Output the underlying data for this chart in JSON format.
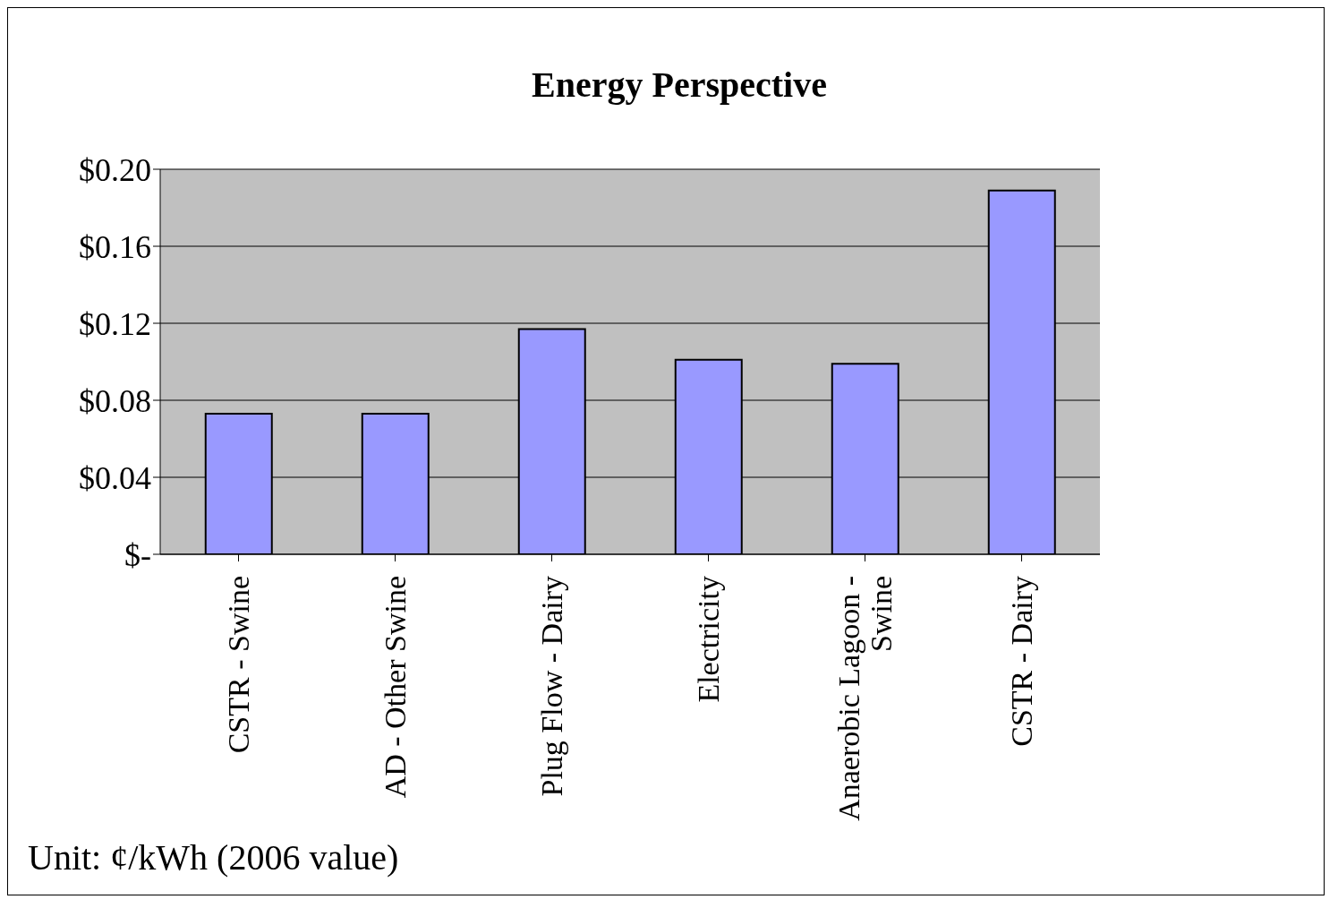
{
  "chart_data": {
    "type": "bar",
    "title": "Energy Perspective",
    "categories": [
      "CSTR - Swine",
      "AD - Other Swine",
      "Plug Flow - Dairy",
      "Electricity",
      "Anaerobic Lagoon - Swine",
      "CSTR - Dairy"
    ],
    "values": [
      0.073,
      0.073,
      0.117,
      0.101,
      0.099,
      0.189
    ],
    "color": "#9999ff",
    "ylim": [
      0,
      0.2
    ],
    "yticks": [
      {
        "value": 0,
        "label": "$-"
      },
      {
        "value": 0.04,
        "label": "$0.04"
      },
      {
        "value": 0.08,
        "label": "$0.08"
      },
      {
        "value": 0.12,
        "label": "$0.12"
      },
      {
        "value": 0.16,
        "label": "$0.16"
      },
      {
        "value": 0.2,
        "label": "$0.20"
      }
    ],
    "grid": "y",
    "legend": false,
    "annotations": [
      "Unit: ¢/kWh (2006 value)"
    ]
  }
}
